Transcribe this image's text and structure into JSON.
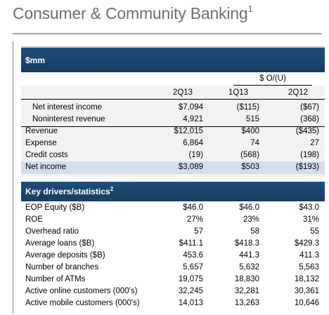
{
  "page": {
    "title": "Consumer & Community Banking",
    "title_footnote": "1"
  },
  "table": {
    "header_label": "$mm",
    "o_u_label": "$ O/(U)",
    "columns": [
      "2Q13",
      "1Q13",
      "2Q12"
    ],
    "income_rows": [
      {
        "label": "Net interest income",
        "values": [
          "$7,094",
          "($115)",
          "($67)"
        ]
      },
      {
        "label": "Noninterest revenue",
        "values": [
          "4,921",
          "515",
          "(368)"
        ]
      },
      {
        "label": "Revenue",
        "values": [
          "$12,015",
          "$400",
          "($435)"
        ]
      },
      {
        "label": "Expense",
        "values": [
          "6,864",
          "74",
          "27"
        ]
      },
      {
        "label": "Credit costs",
        "values": [
          "(19)",
          "(568)",
          "(198)"
        ]
      },
      {
        "label": "Net income",
        "values": [
          "$3,089",
          "$503",
          "($193)"
        ]
      }
    ],
    "drivers_label": "Key drivers/statistics",
    "drivers_footnote": "2",
    "driver_rows": [
      {
        "label": "EOP Equity ($B)",
        "values": [
          "$46.0",
          "$46.0",
          "$43.0"
        ]
      },
      {
        "label": "ROE",
        "values": [
          "27%",
          "23%",
          "31%"
        ]
      },
      {
        "label": "Overhead ratio",
        "values": [
          "57",
          "58",
          "55"
        ]
      },
      {
        "label": "Average loans ($B)",
        "values": [
          "$411.1",
          "$418.3",
          "$429.3"
        ]
      },
      {
        "label": "Average deposits ($B)",
        "values": [
          "453.6",
          "441.3",
          "411.3"
        ]
      },
      {
        "label": "Number of branches",
        "values": [
          "5,657",
          "5,632",
          "5,563"
        ]
      },
      {
        "label": "Number of ATMs",
        "values": [
          "19,075",
          "18,830",
          "18,132"
        ]
      },
      {
        "label": "Active online customers (000's)",
        "values": [
          "32,245",
          "32,281",
          "30,361"
        ]
      },
      {
        "label": "Active mobile customers (000's)",
        "values": [
          "14,013",
          "13,263",
          "10,646"
        ]
      }
    ]
  }
}
